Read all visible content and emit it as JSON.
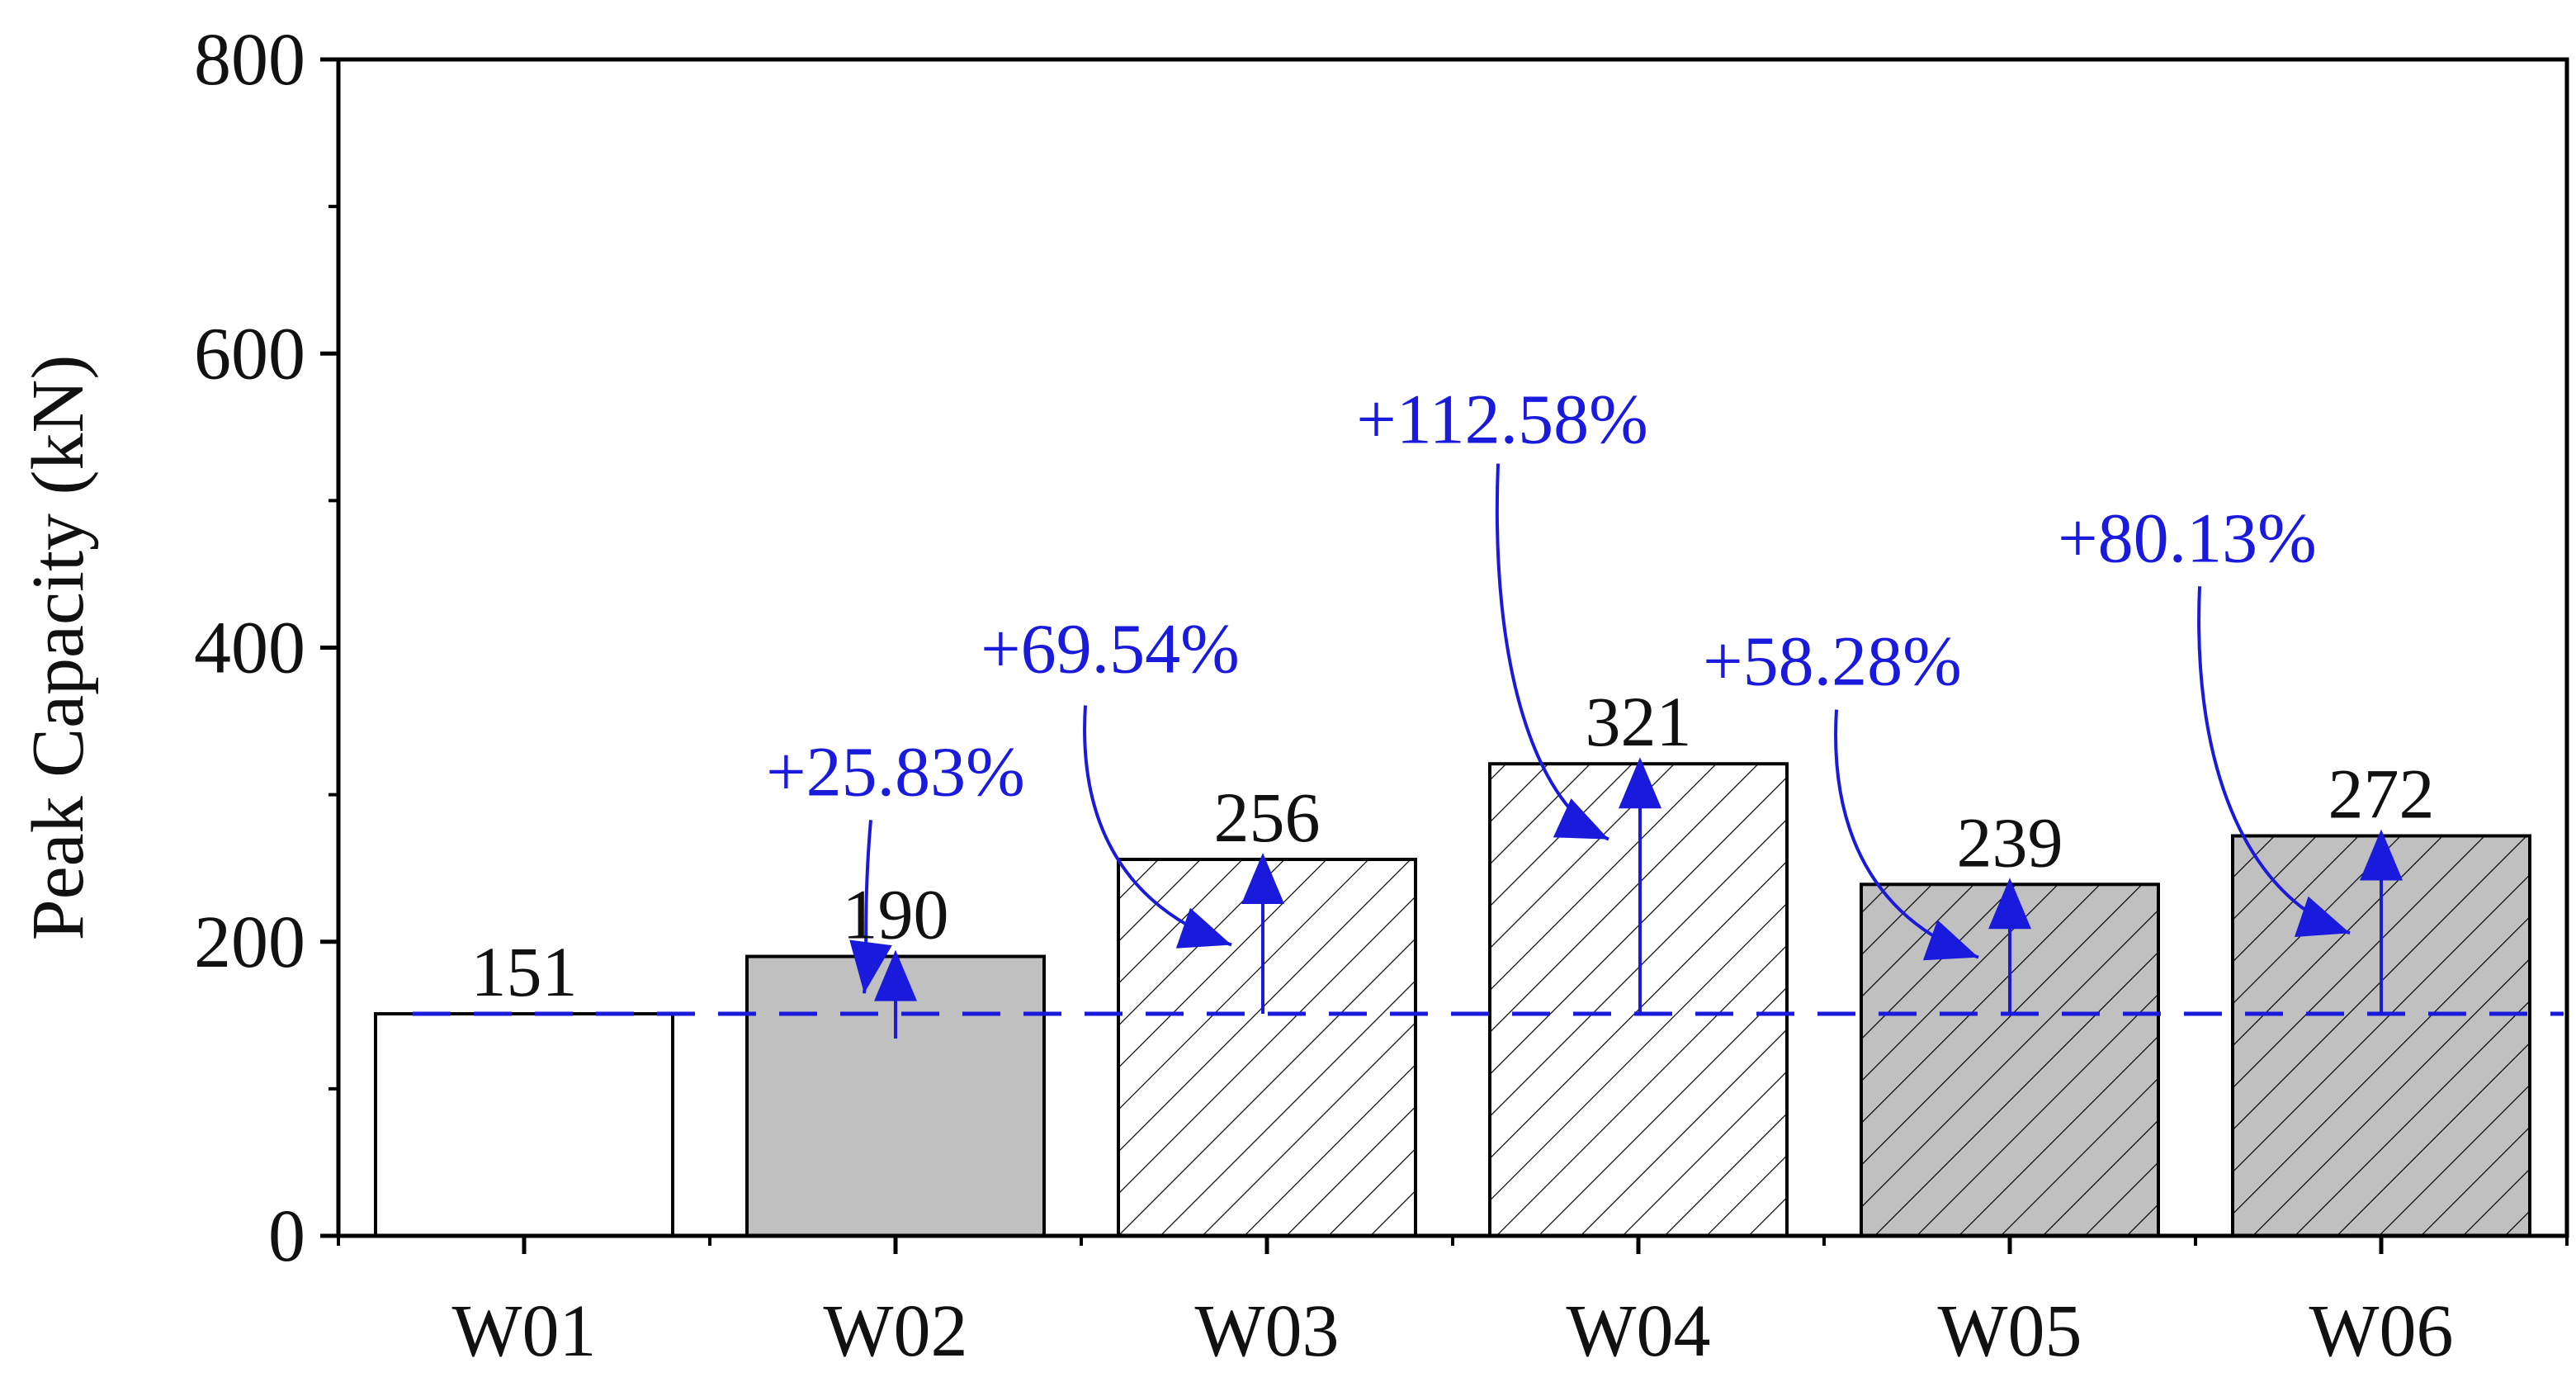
{
  "chart_data": {
    "type": "bar",
    "categories": [
      "W01",
      "W02",
      "W03",
      "W04",
      "W05",
      "W06"
    ],
    "values": [
      151,
      190,
      256,
      321,
      239,
      272
    ],
    "data_labels": [
      "151",
      "190",
      "256",
      "321",
      "239",
      "272"
    ],
    "bar_styles": [
      {
        "fill": "#ffffff",
        "hatch": false
      },
      {
        "fill": "#c0c0c0",
        "hatch": false
      },
      {
        "fill": "#ffffff",
        "hatch": true
      },
      {
        "fill": "#ffffff",
        "hatch": true
      },
      {
        "fill": "#c0c0c0",
        "hatch": true
      },
      {
        "fill": "#c0c0c0",
        "hatch": true
      }
    ],
    "ylabel": "Peak Capacity (kN)",
    "xlabel": "",
    "ylim": [
      0,
      800
    ],
    "yticks": [
      0,
      200,
      400,
      600,
      800
    ],
    "ytick_labels": [
      "0",
      "200",
      "400",
      "600",
      "800"
    ],
    "reference_line": {
      "value": 151,
      "style": "dashed"
    },
    "annotations": [
      {
        "category": "W02",
        "text": "+25.83%"
      },
      {
        "category": "W03",
        "text": "+69.54%"
      },
      {
        "category": "W04",
        "text": "+112.58%"
      },
      {
        "category": "W05",
        "text": "+58.28%"
      },
      {
        "category": "W06",
        "text": "+80.13%"
      }
    ],
    "grid": false,
    "colors": {
      "annotation": "#1a1adc",
      "bar_stroke": "#000000",
      "axis": "#000000"
    }
  }
}
